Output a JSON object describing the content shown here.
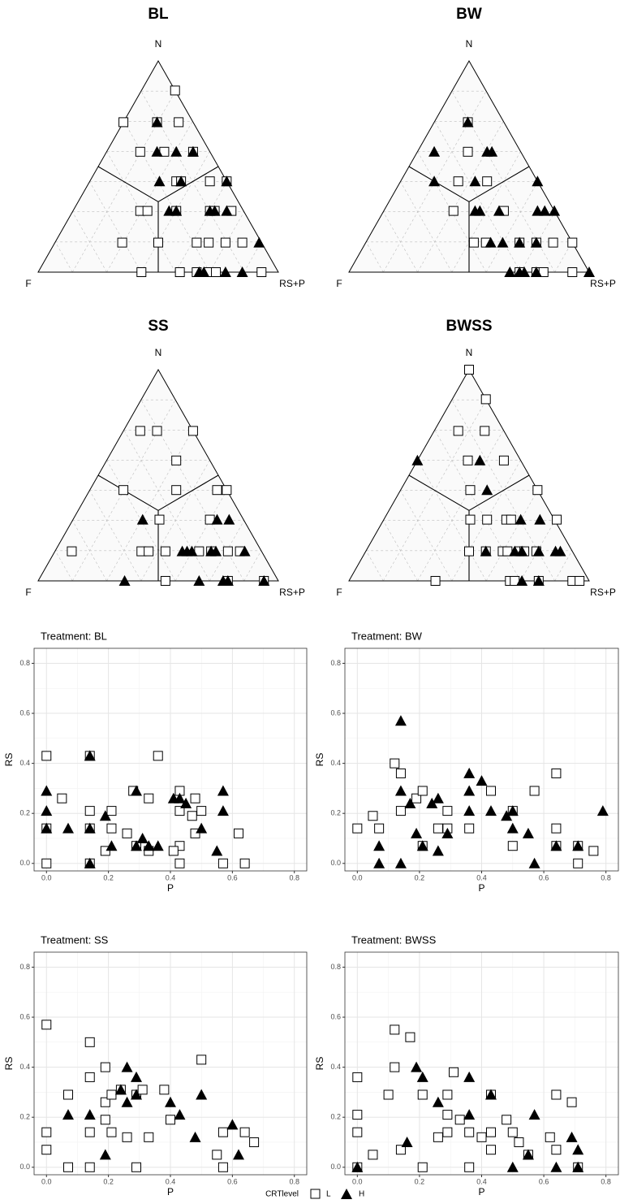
{
  "legend_title": "CRTlevel",
  "chart_data": [
    {
      "type": "ternary",
      "title": "BL",
      "top_label": "N",
      "left_label": "F",
      "right_label": "RS+P",
      "grid": true,
      "series": [
        {
          "name": "L",
          "marker": "square",
          "color": "#000000",
          "n": [
            0.86,
            0.71,
            0.71,
            0.71,
            0.57,
            0.57,
            0.57,
            0.43,
            0.43,
            0.43,
            0.43,
            0.29,
            0.29,
            0.29,
            0.29,
            0.29,
            0.29,
            0.14,
            0.14,
            0.14,
            0.14,
            0.14,
            0.14,
            0,
            0,
            0,
            0,
            0,
            0
          ],
          "rsp": [
            0.14,
            0,
            0.14,
            0.23,
            0.14,
            0.24,
            0.36,
            0.36,
            0.38,
            0.5,
            0.57,
            0.28,
            0.31,
            0.43,
            0.57,
            0.59,
            0.66,
            0.28,
            0.43,
            0.59,
            0.64,
            0.71,
            0.78,
            0.43,
            0.59,
            0.66,
            0.71,
            0.74,
            0.93
          ]
        },
        {
          "name": "H",
          "marker": "triangle",
          "color": "#000000",
          "n": [
            0.71,
            0.57,
            0.57,
            0.57,
            0.43,
            0.43,
            0.43,
            0.29,
            0.29,
            0.29,
            0.29,
            0.29,
            0.14,
            0,
            0,
            0,
            0
          ],
          "rsp": [
            0.14,
            0.21,
            0.29,
            0.36,
            0.29,
            0.38,
            0.57,
            0.4,
            0.43,
            0.57,
            0.59,
            0.64,
            0.85,
            0.67,
            0.69,
            0.78,
            0.85
          ]
        }
      ]
    },
    {
      "type": "ternary",
      "title": "BW",
      "top_label": "N",
      "left_label": "F",
      "right_label": "RS+P",
      "grid": true,
      "series": [
        {
          "name": "L",
          "marker": "square",
          "color": "#000000",
          "n": [
            0.71,
            0.57,
            0.43,
            0.43,
            0.29,
            0.29,
            0.14,
            0.14,
            0.14,
            0.14,
            0.14,
            0.14,
            0,
            0,
            0,
            0
          ],
          "rsp": [
            0.14,
            0.21,
            0.24,
            0.36,
            0.29,
            0.5,
            0.45,
            0.5,
            0.64,
            0.71,
            0.78,
            0.86,
            0.71,
            0.78,
            0.81,
            0.93
          ]
        },
        {
          "name": "H",
          "marker": "triangle",
          "color": "#000000",
          "n": [
            0.71,
            0.57,
            0.57,
            0.57,
            0.43,
            0.43,
            0.43,
            0.29,
            0.29,
            0.29,
            0.29,
            0.29,
            0.29,
            0.14,
            0.14,
            0.14,
            0.14,
            0,
            0,
            0,
            0,
            0
          ],
          "rsp": [
            0.14,
            0.07,
            0.29,
            0.31,
            0.14,
            0.31,
            0.57,
            0.38,
            0.4,
            0.48,
            0.64,
            0.67,
            0.71,
            0.52,
            0.57,
            0.64,
            0.71,
            0.67,
            0.71,
            0.73,
            0.78,
            1.0
          ]
        }
      ]
    },
    {
      "type": "ternary",
      "title": "SS",
      "top_label": "N",
      "left_label": "F",
      "right_label": "RS+P",
      "grid": true,
      "series": [
        {
          "name": "L",
          "marker": "square",
          "color": "#000000",
          "n": [
            0.71,
            0.71,
            0.71,
            0.57,
            0.43,
            0.43,
            0.43,
            0.43,
            0.29,
            0.29,
            0.14,
            0.14,
            0.14,
            0.14,
            0.14,
            0.14,
            0.14,
            0.14,
            0,
            0,
            0
          ],
          "rsp": [
            0.07,
            0.14,
            0.29,
            0.29,
            0.14,
            0.36,
            0.53,
            0.57,
            0.36,
            0.57,
            0.07,
            0.36,
            0.39,
            0.46,
            0.6,
            0.65,
            0.72,
            0.77,
            0.53,
            0.79,
            0.94
          ]
        },
        {
          "name": "H",
          "marker": "triangle",
          "color": "#000000",
          "n": [
            0.29,
            0.29,
            0.29,
            0.14,
            0.14,
            0.14,
            0.14,
            0.14,
            0.14,
            0,
            0,
            0,
            0,
            0
          ],
          "rsp": [
            0.29,
            0.6,
            0.65,
            0.53,
            0.55,
            0.57,
            0.65,
            0.67,
            0.79,
            0.36,
            0.67,
            0.77,
            0.79,
            0.94
          ]
        }
      ]
    },
    {
      "type": "ternary",
      "title": "BWSS",
      "top_label": "N",
      "left_label": "F",
      "right_label": "RS+P",
      "grid": true,
      "series": [
        {
          "name": "L",
          "marker": "square",
          "color": "#000000",
          "n": [
            1,
            0.86,
            0.71,
            0.71,
            0.57,
            0.57,
            0.43,
            0.43,
            0.29,
            0.29,
            0.29,
            0.29,
            0.29,
            0.14,
            0.14,
            0.14,
            0.14,
            0.14,
            0.14,
            0.14,
            0,
            0,
            0,
            0,
            0,
            0
          ],
          "rsp": [
            0,
            0.14,
            0.1,
            0.21,
            0.21,
            0.36,
            0.29,
            0.57,
            0.36,
            0.43,
            0.51,
            0.53,
            0.72,
            0.43,
            0.5,
            0.57,
            0.59,
            0.64,
            0.66,
            0.71,
            0.36,
            0.67,
            0.69,
            0.79,
            0.93,
            0.96
          ]
        },
        {
          "name": "H",
          "marker": "triangle",
          "color": "#000000",
          "n": [
            0.57,
            0.57,
            0.43,
            0.29,
            0.29,
            0.14,
            0.14,
            0.14,
            0.14,
            0.14,
            0.14,
            0,
            0
          ],
          "rsp": [
            0,
            0.26,
            0.36,
            0.57,
            0.65,
            0.5,
            0.62,
            0.65,
            0.72,
            0.79,
            0.81,
            0.72,
            0.79
          ]
        }
      ]
    },
    {
      "type": "scatter",
      "title": "Treatment: BL",
      "xlabel": "P",
      "ylabel": "RS",
      "grid": true,
      "xlim": [
        -0.04,
        0.84
      ],
      "ylim": [
        -0.03,
        0.86
      ],
      "xticks": [
        {
          "value": 0,
          "label": "0.0"
        },
        0.2,
        0.4,
        0.6,
        0.8
      ],
      "yticks": [
        {
          "value": 0,
          "label": "0.0"
        },
        0.2,
        0.4,
        0.6,
        0.8
      ],
      "series": [
        {
          "name": "L",
          "marker": "square",
          "color": "#000000",
          "x": [
            0,
            0,
            0,
            0.05,
            0.14,
            0.14,
            0.14,
            0.14,
            0.21,
            0.21,
            0.19,
            0.26,
            0.28,
            0.33,
            0.33,
            0.36,
            0.43,
            0.43,
            0.43,
            0.43,
            0.41,
            0.47,
            0.48,
            0.5,
            0.48,
            0.57,
            0.62,
            0.64,
            0.29
          ],
          "values": [
            0.43,
            0.14,
            0,
            0.26,
            0.43,
            0.21,
            0.14,
            0,
            0.21,
            0.14,
            0.05,
            0.12,
            0.29,
            0.26,
            0.05,
            0.43,
            0.29,
            0.21,
            0.07,
            0,
            0.05,
            0.19,
            0.12,
            0.21,
            0.26,
            0,
            0.12,
            0,
            0.07
          ]
        },
        {
          "name": "H",
          "marker": "triangle",
          "color": "#000000",
          "x": [
            0,
            0,
            0,
            0.07,
            0.14,
            0.14,
            0.14,
            0.19,
            0.21,
            0.29,
            0.29,
            0.31,
            0.33,
            0.36,
            0.41,
            0.45,
            0.43,
            0.5,
            0.55,
            0.57,
            0.57
          ],
          "values": [
            0.29,
            0.21,
            0.14,
            0.14,
            0.43,
            0.14,
            0,
            0.19,
            0.07,
            0.29,
            0.07,
            0.1,
            0.07,
            0.07,
            0.26,
            0.24,
            0.26,
            0.14,
            0.05,
            0.29,
            0.21
          ]
        }
      ]
    },
    {
      "type": "scatter",
      "title": "Treatment: BW",
      "xlabel": "P",
      "ylabel": "RS",
      "grid": true,
      "xlim": [
        -0.04,
        0.84
      ],
      "ylim": [
        -0.03,
        0.86
      ],
      "xticks": [
        {
          "value": 0,
          "label": "0.0"
        },
        0.2,
        0.4,
        0.6,
        0.8
      ],
      "yticks": [
        {
          "value": 0,
          "label": "0.0"
        },
        0.2,
        0.4,
        0.6,
        0.8
      ],
      "series": [
        {
          "name": "L",
          "marker": "square",
          "color": "#000000",
          "x": [
            0,
            0.05,
            0.07,
            0.12,
            0.14,
            0.14,
            0.19,
            0.21,
            0.21,
            0.26,
            0.29,
            0.29,
            0.36,
            0.43,
            0.5,
            0.5,
            0.57,
            0.64,
            0.64,
            0.64,
            0.71,
            0.71,
            0.76
          ],
          "values": [
            0.14,
            0.19,
            0.14,
            0.4,
            0.36,
            0.21,
            0.26,
            0.29,
            0.07,
            0.14,
            0.21,
            0.14,
            0.14,
            0.29,
            0.21,
            0.07,
            0.29,
            0.36,
            0.14,
            0.07,
            0.07,
            0,
            0.05
          ]
        },
        {
          "name": "H",
          "marker": "triangle",
          "color": "#000000",
          "x": [
            0.07,
            0.07,
            0.14,
            0.14,
            0.14,
            0.17,
            0.19,
            0.21,
            0.24,
            0.26,
            0.26,
            0.29,
            0.36,
            0.36,
            0.36,
            0.4,
            0.43,
            0.48,
            0.5,
            0.5,
            0.55,
            0.57,
            0.64,
            0.71,
            0.79
          ],
          "values": [
            0.07,
            0,
            0.57,
            0.29,
            0,
            0.24,
            0.12,
            0.07,
            0.24,
            0.26,
            0.05,
            0.12,
            0.36,
            0.29,
            0.21,
            0.33,
            0.21,
            0.19,
            0.21,
            0.14,
            0.12,
            0,
            0.07,
            0.07,
            0.21
          ]
        }
      ]
    },
    {
      "type": "scatter",
      "title": "Treatment: SS",
      "xlabel": "P",
      "ylabel": "RS",
      "grid": true,
      "xlim": [
        -0.04,
        0.84
      ],
      "ylim": [
        -0.03,
        0.86
      ],
      "xticks": [
        {
          "value": 0,
          "label": "0.0"
        },
        0.2,
        0.4,
        0.6,
        0.8
      ],
      "yticks": [
        {
          "value": 0,
          "label": "0.0"
        },
        0.2,
        0.4,
        0.6,
        0.8
      ],
      "series": [
        {
          "name": "L",
          "marker": "square",
          "color": "#000000",
          "x": [
            0,
            0,
            0,
            0.07,
            0.07,
            0.14,
            0.14,
            0.14,
            0.14,
            0.19,
            0.19,
            0.19,
            0.21,
            0.21,
            0.24,
            0.26,
            0.29,
            0.29,
            0.31,
            0.33,
            0.38,
            0.4,
            0.5,
            0.55,
            0.57,
            0.57,
            0.64,
            0.67
          ],
          "values": [
            0.57,
            0.14,
            0.07,
            0.29,
            0,
            0.5,
            0.36,
            0.14,
            0,
            0.4,
            0.26,
            0.19,
            0.14,
            0.29,
            0.31,
            0.12,
            0.29,
            0,
            0.31,
            0.12,
            0.31,
            0.19,
            0.43,
            0.05,
            0.14,
            0,
            0.14,
            0.1
          ]
        },
        {
          "name": "H",
          "marker": "triangle",
          "color": "#000000",
          "x": [
            0.07,
            0.14,
            0.19,
            0.24,
            0.26,
            0.26,
            0.29,
            0.29,
            0.4,
            0.43,
            0.48,
            0.5,
            0.6,
            0.62
          ],
          "values": [
            0.21,
            0.21,
            0.05,
            0.31,
            0.4,
            0.26,
            0.36,
            0.29,
            0.26,
            0.21,
            0.12,
            0.29,
            0.17,
            0.05
          ]
        }
      ]
    },
    {
      "type": "scatter",
      "title": "Treatment: BWSS",
      "xlabel": "P",
      "ylabel": "RS",
      "grid": true,
      "xlim": [
        -0.04,
        0.84
      ],
      "ylim": [
        -0.03,
        0.86
      ],
      "xticks": [
        {
          "value": 0,
          "label": "0.0"
        },
        0.2,
        0.4,
        0.6,
        0.8
      ],
      "yticks": [
        {
          "value": 0,
          "label": "0.0"
        },
        0.2,
        0.4,
        0.6,
        0.8
      ],
      "series": [
        {
          "name": "L",
          "marker": "square",
          "color": "#000000",
          "x": [
            0,
            0,
            0,
            0,
            0.05,
            0.1,
            0.12,
            0.12,
            0.14,
            0.17,
            0.21,
            0.21,
            0.26,
            0.29,
            0.29,
            0.29,
            0.31,
            0.33,
            0.36,
            0.36,
            0.4,
            0.43,
            0.43,
            0.43,
            0.48,
            0.5,
            0.52,
            0.55,
            0.62,
            0.64,
            0.64,
            0.69,
            0.71
          ],
          "values": [
            0.36,
            0.21,
            0.14,
            0,
            0.05,
            0.29,
            0.55,
            0.4,
            0.07,
            0.52,
            0.29,
            0,
            0.12,
            0.29,
            0.21,
            0.14,
            0.38,
            0.19,
            0.14,
            0,
            0.12,
            0.29,
            0.14,
            0.07,
            0.19,
            0.14,
            0.1,
            0.05,
            0.12,
            0.29,
            0.07,
            0.26,
            0
          ]
        },
        {
          "name": "H",
          "marker": "triangle",
          "color": "#000000",
          "x": [
            0,
            0.16,
            0.19,
            0.21,
            0.26,
            0.36,
            0.36,
            0.43,
            0.5,
            0.55,
            0.57,
            0.64,
            0.69,
            0.71,
            0.71
          ],
          "values": [
            0,
            0.1,
            0.4,
            0.36,
            0.26,
            0.36,
            0.21,
            0.29,
            0,
            0.05,
            0.21,
            0,
            0.12,
            0.07,
            0
          ]
        }
      ]
    }
  ]
}
